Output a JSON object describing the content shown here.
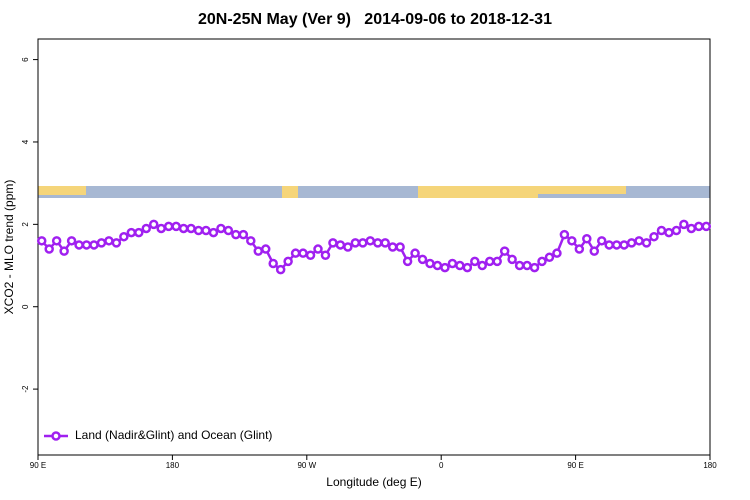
{
  "chart_data": {
    "type": "line",
    "title": "20N-25N May (Ver 9)   2014-09-06 to 2018-12-31",
    "x_label": "Longitude (deg E)",
    "y_label": "XCO2 - MLO trend (ppm)",
    "x": [
      92.5,
      97.5,
      102.5,
      107.5,
      112.5,
      117.5,
      122.5,
      127.5,
      132.5,
      137.5,
      142.5,
      147.5,
      152.5,
      157.5,
      162.5,
      167.5,
      172.5,
      177.5,
      182.5,
      187.5,
      192.5,
      197.5,
      202.5,
      207.5,
      212.5,
      217.5,
      222.5,
      227.5,
      232.5,
      237.5,
      242.5,
      247.5,
      252.5,
      257.5,
      262.5,
      267.5,
      272.5,
      277.5,
      282.5,
      287.5,
      292.5,
      297.5,
      302.5,
      307.5,
      312.5,
      317.5,
      322.5,
      327.5,
      332.5,
      337.5,
      342.5,
      347.5,
      352.5,
      357.5,
      362.5,
      367.5,
      372.5,
      377.5,
      382.5,
      387.5,
      392.5,
      397.5,
      402.5,
      407.5,
      412.5,
      417.5,
      422.5,
      427.5,
      432.5,
      437.5,
      442.5,
      447.5,
      452.5,
      457.5,
      462.5,
      467.5,
      472.5,
      477.5,
      482.5,
      487.5,
      492.5,
      497.5,
      502.5,
      507.5,
      512.5,
      517.5,
      522.5,
      527.5,
      532.5,
      537.5
    ],
    "series": [
      {
        "name": "Land (Nadir&Glint) and Ocean (Glint)",
        "color": "#a020f0",
        "values": [
          1.6,
          1.4,
          1.6,
          1.35,
          1.6,
          1.5,
          1.5,
          1.5,
          1.55,
          1.6,
          1.55,
          1.7,
          1.8,
          1.8,
          1.9,
          2.0,
          1.9,
          1.95,
          1.95,
          1.9,
          1.9,
          1.85,
          1.85,
          1.8,
          1.9,
          1.85,
          1.75,
          1.75,
          1.6,
          1.35,
          1.4,
          1.05,
          0.9,
          1.1,
          1.3,
          1.3,
          1.25,
          1.4,
          1.25,
          1.55,
          1.5,
          1.45,
          1.55,
          1.55,
          1.6,
          1.55,
          1.55,
          1.45,
          1.45,
          1.1,
          1.3,
          1.15,
          1.05,
          1.0,
          0.95,
          1.05,
          1.0,
          0.95,
          1.1,
          1.0,
          1.1,
          1.1,
          1.35,
          1.15,
          1.0,
          1.0,
          0.95,
          1.1,
          1.2,
          1.3,
          1.75,
          1.6,
          1.4,
          1.65,
          1.35,
          1.6,
          1.5,
          1.5,
          1.5,
          1.55,
          1.6,
          1.55,
          1.7,
          1.85,
          1.8,
          1.85,
          2.0,
          1.9,
          1.95,
          1.95
        ]
      }
    ],
    "xlim": [
      90,
      540
    ],
    "xticks": [
      {
        "value": 90,
        "label": "90 E"
      },
      180,
      {
        "value": 270,
        "label": "90 W"
      },
      {
        "value": 360,
        "label": "0"
      },
      {
        "value": 450,
        "label": "90 E"
      },
      {
        "value": 540,
        "label": "180"
      }
    ],
    "ylim": [
      -3.6,
      6.5
    ],
    "yticks": [
      -2,
      0,
      2,
      4,
      6
    ],
    "legend": "bottom-left"
  }
}
